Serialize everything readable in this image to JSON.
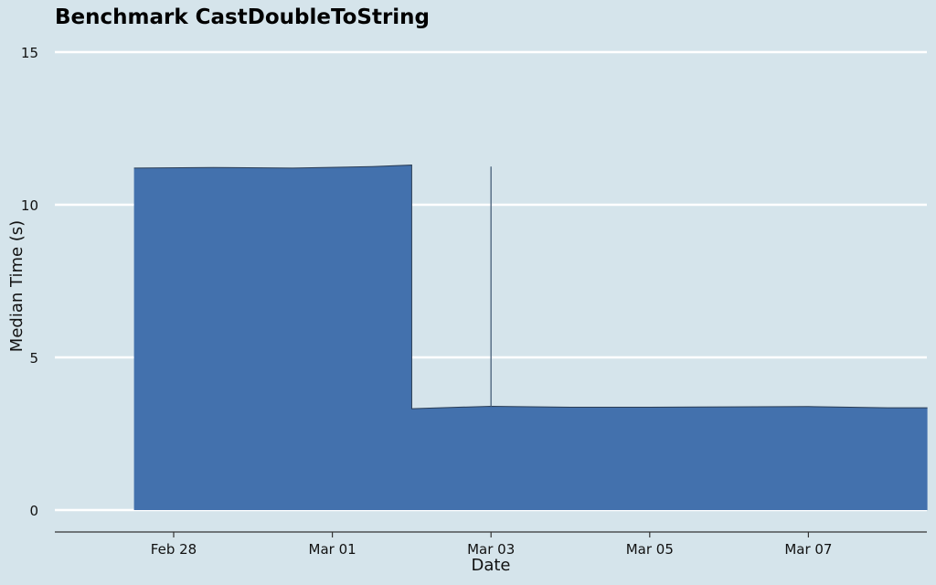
{
  "chart_data": {
    "type": "area",
    "title": "Benchmark CastDoubleToString",
    "xlabel": "Date",
    "ylabel": "Median Time (s)",
    "ylim": [
      0,
      15
    ],
    "yticks": [
      0,
      5,
      10,
      15
    ],
    "xticks": [
      "Feb 28",
      "Mar 01",
      "Mar 03",
      "Mar 05",
      "Mar 07"
    ],
    "grid": "horizontal",
    "colors": {
      "fill": "#4371ad",
      "line": "#2a3d55",
      "spike": "#5a7088",
      "grid": "#ffffff",
      "background": "#d5e4eb"
    },
    "series": [
      {
        "x": [
          "2024-02-27 12:00",
          "2024-02-28 12:00",
          "2024-02-29 12:00",
          "2024-03-01 12:00",
          "2024-03-02 00:00",
          "2024-03-02 00:01",
          "2024-03-03 00:00",
          "2024-03-04 00:00",
          "2024-03-05 00:00",
          "2024-03-06 00:00",
          "2024-03-07 00:00",
          "2024-03-08 00:00",
          "2024-03-08 12:00"
        ],
        "y": [
          11.2,
          11.22,
          11.2,
          11.25,
          11.3,
          3.32,
          3.4,
          3.37,
          3.37,
          3.38,
          3.39,
          3.35,
          3.35
        ]
      }
    ],
    "spike": {
      "x": "2024-03-03 00:00",
      "y_low": 3.4,
      "y_high": 11.25
    }
  }
}
